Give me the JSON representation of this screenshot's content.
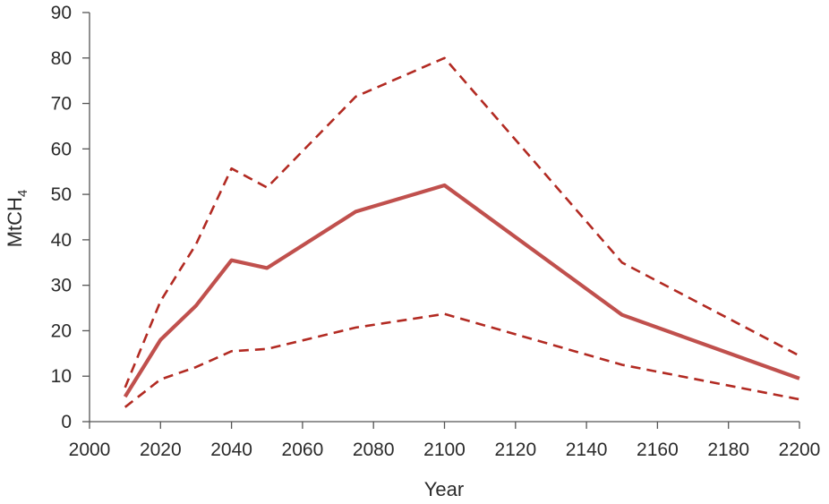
{
  "chart_data": {
    "type": "line",
    "title": "",
    "xlabel": "Year",
    "ylabel": "MtCH",
    "ylabel_subscript": "4",
    "xlim": [
      2000,
      2200
    ],
    "ylim": [
      0,
      90
    ],
    "xticks": [
      2000,
      2020,
      2040,
      2060,
      2080,
      2100,
      2120,
      2140,
      2160,
      2180,
      2200
    ],
    "yticks": [
      0,
      10,
      20,
      30,
      40,
      50,
      60,
      70,
      80,
      90
    ],
    "grid": false,
    "legend": "none",
    "series": [
      {
        "style": "solid",
        "color": "#c0504d",
        "x": [
          2010,
          2020,
          2030,
          2040,
          2050,
          2075,
          2100,
          2150,
          2200
        ],
        "y": [
          5.5,
          18,
          25.5,
          35.5,
          33.8,
          46.2,
          52,
          23.5,
          9.5
        ]
      },
      {
        "style": "dashed",
        "color": "#b22a22",
        "x": [
          2010,
          2020,
          2030,
          2040,
          2050,
          2075,
          2100,
          2150,
          2200
        ],
        "y": [
          7.5,
          26.5,
          39,
          55.7,
          51.5,
          71.5,
          80,
          35,
          14.5
        ]
      },
      {
        "style": "dashed",
        "color": "#b22a22",
        "x": [
          2010,
          2020,
          2030,
          2040,
          2050,
          2075,
          2100,
          2150,
          2200
        ],
        "y": [
          3.2,
          9.3,
          12,
          15.5,
          16,
          20.7,
          23.7,
          12.5,
          4.9
        ]
      }
    ]
  }
}
